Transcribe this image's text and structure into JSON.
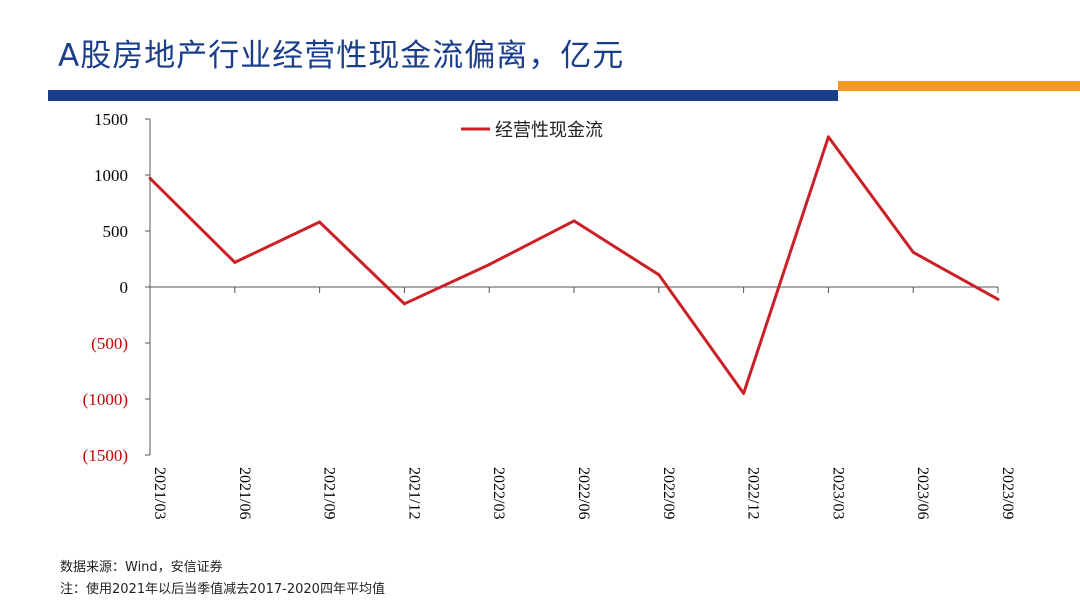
{
  "title": "A股房地产行业经营性现金流偏离，亿元",
  "colors": {
    "title": "#1a3e8c",
    "bar_left": "#1a3e8c",
    "bar_right": "#f39a1f",
    "series": "#cc2027",
    "negative_tick": "#c00000"
  },
  "footer": {
    "source": "数据来源：Wind，安信证券",
    "note": "注：使用2021年以后当季值减去2017-2020四年平均值"
  },
  "chart_data": {
    "type": "line",
    "title": "",
    "xlabel": "",
    "ylabel": "",
    "ylim": [
      -1500,
      1500
    ],
    "y_ticks": [
      1500,
      1000,
      500,
      0,
      -500,
      -1000,
      -1500
    ],
    "y_tick_labels": [
      "1500",
      "1000",
      "500",
      "0",
      "(500)",
      "(1000)",
      "(1500)"
    ],
    "categories": [
      "2021/03",
      "2021/06",
      "2021/09",
      "2021/12",
      "2022/03",
      "2022/06",
      "2022/09",
      "2022/12",
      "2023/03",
      "2023/06",
      "2023/09"
    ],
    "series": [
      {
        "name": "经营性现金流",
        "values": [
          970,
          220,
          580,
          -150,
          200,
          590,
          110,
          -950,
          1340,
          310,
          -110
        ]
      }
    ],
    "legend_position": "top-center",
    "grid": false
  }
}
